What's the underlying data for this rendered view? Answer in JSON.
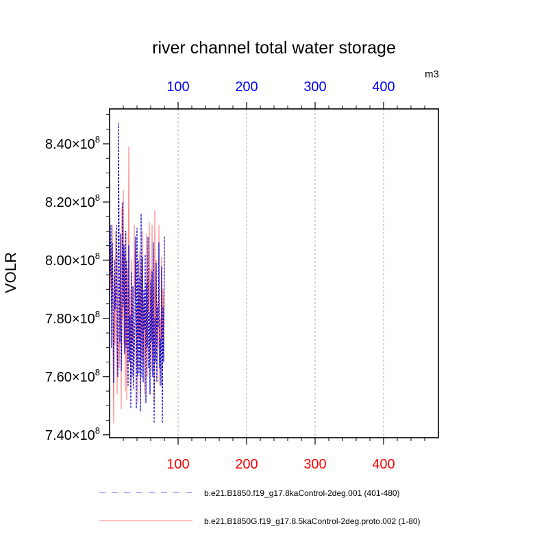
{
  "chart_data": {
    "type": "line",
    "title": "river channel total water storage",
    "units_label": "m3",
    "ylabel": "VOLR",
    "xlabel": "",
    "xlim": [
      0,
      480
    ],
    "ylim": [
      739000000,
      852000000
    ],
    "grid": "vertical dashed at x ticks",
    "legend_position": "bottom",
    "x_ticks": [
      {
        "value": 100,
        "label": "100"
      },
      {
        "value": 200,
        "label": "200"
      },
      {
        "value": 300,
        "label": "300"
      },
      {
        "value": 400,
        "label": "400"
      }
    ],
    "y_ticks": [
      {
        "value": 740000000,
        "mantissa": "7.40",
        "exp": "8"
      },
      {
        "value": 760000000,
        "mantissa": "7.60",
        "exp": "8"
      },
      {
        "value": 780000000,
        "mantissa": "7.80",
        "exp": "8"
      },
      {
        "value": 800000000,
        "mantissa": "8.00",
        "exp": "8"
      },
      {
        "value": 820000000,
        "mantissa": "8.20",
        "exp": "8"
      },
      {
        "value": 840000000,
        "mantissa": "8.40",
        "exp": "8"
      }
    ],
    "axis_colors": {
      "bottom": "#ff0000",
      "top": "#0000ff"
    },
    "series": [
      {
        "name": "b.e21.B1850.f19_g17.8kaControl-2deg.001 (401-480)",
        "color": "#0000cc",
        "style": "dashed",
        "x": [
          1,
          2,
          3,
          4,
          5,
          6,
          7,
          8,
          9,
          10,
          11,
          12,
          13,
          14,
          15,
          16,
          17,
          18,
          19,
          20,
          21,
          22,
          23,
          24,
          25,
          26,
          27,
          28,
          29,
          30,
          31,
          32,
          33,
          34,
          35,
          36,
          37,
          38,
          39,
          40,
          41,
          42,
          43,
          44,
          45,
          46,
          47,
          48,
          49,
          50,
          51,
          52,
          53,
          54,
          55,
          56,
          57,
          58,
          59,
          60,
          61,
          62,
          63,
          64,
          65,
          66,
          67,
          68,
          69,
          70,
          71,
          72,
          73,
          74,
          75,
          76,
          77,
          78,
          79,
          80
        ],
        "values": [
          795000000,
          812000000,
          770000000,
          806000000,
          788000000,
          758000000,
          800000000,
          783000000,
          790000000,
          812000000,
          772000000,
          760000000,
          847000000,
          801000000,
          772000000,
          809000000,
          762000000,
          778000000,
          820000000,
          784000000,
          805000000,
          768000000,
          810000000,
          770000000,
          800000000,
          778000000,
          757000000,
          805000000,
          765000000,
          781000000,
          749000000,
          796000000,
          760000000,
          791000000,
          756000000,
          768000000,
          780000000,
          808000000,
          749000000,
          811000000,
          760000000,
          800000000,
          761000000,
          794000000,
          748000000,
          816000000,
          760000000,
          801000000,
          758000000,
          790000000,
          776000000,
          802000000,
          751000000,
          792000000,
          770000000,
          808000000,
          763000000,
          782000000,
          754000000,
          793000000,
          772000000,
          796000000,
          760000000,
          806000000,
          744000000,
          780000000,
          765000000,
          799000000,
          758000000,
          784000000,
          777000000,
          806000000,
          763000000,
          773000000,
          757000000,
          798000000,
          744000000,
          784000000,
          765000000,
          808000000
        ]
      },
      {
        "name": "b.e21.B1850G.f19_g17.8.5kaControl-2deg.proto.002 (1-80)",
        "color": "#ff8080",
        "style": "solid",
        "x": [
          1,
          2,
          3,
          4,
          5,
          6,
          7,
          8,
          9,
          10,
          11,
          12,
          13,
          14,
          15,
          16,
          17,
          18,
          19,
          20,
          21,
          22,
          23,
          24,
          25,
          26,
          27,
          28,
          29,
          30,
          31,
          32,
          33,
          34,
          35,
          36,
          37,
          38,
          39,
          40,
          41,
          42,
          43,
          44,
          45,
          46,
          47,
          48,
          49,
          50,
          51,
          52,
          53,
          54,
          55,
          56,
          57,
          58,
          59,
          60,
          61,
          62,
          63,
          64,
          65,
          66,
          67,
          68,
          69,
          70,
          71,
          72,
          73,
          74,
          75,
          76,
          77,
          78,
          79,
          80
        ],
        "values": [
          790000000,
          805000000,
          783000000,
          812000000,
          770000000,
          744000000,
          795000000,
          771000000,
          810000000,
          790000000,
          754000000,
          803000000,
          786000000,
          763000000,
          774000000,
          800000000,
          749000000,
          818000000,
          780000000,
          824000000,
          771000000,
          802000000,
          755000000,
          810000000,
          752000000,
          797000000,
          766000000,
          839000000,
          765000000,
          790000000,
          756000000,
          800000000,
          772000000,
          778000000,
          760000000,
          812000000,
          787000000,
          806000000,
          762000000,
          785000000,
          751000000,
          792000000,
          773000000,
          803000000,
          754000000,
          800000000,
          766000000,
          810000000,
          764000000,
          787000000,
          754000000,
          783000000,
          769000000,
          809000000,
          760000000,
          794000000,
          782000000,
          813000000,
          767000000,
          797000000,
          762000000,
          812000000,
          765000000,
          791000000,
          751000000,
          817000000,
          772000000,
          800000000,
          759000000,
          786000000,
          770000000,
          812000000,
          757000000,
          780000000,
          773000000,
          801000000,
          762000000,
          790000000,
          772000000,
          808000000
        ]
      }
    ]
  }
}
